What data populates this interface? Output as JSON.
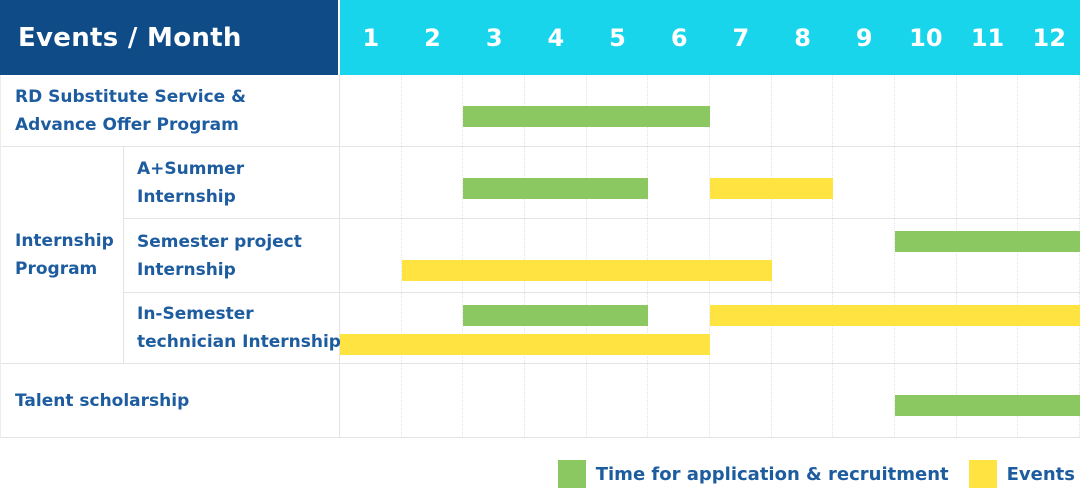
{
  "header": {
    "title": "Events / Month"
  },
  "colors": {
    "header_bg": "#0e4b87",
    "months_bg": "#18d5ec",
    "label_text": "#1d5c9f",
    "application_bar": "#8cc862",
    "events_bar": "#ffe340"
  },
  "chart_data": {
    "type": "bar",
    "subtype": "gantt-schedule",
    "title": "Events / Month",
    "x_axis_label": "Month",
    "months": [
      "1",
      "2",
      "3",
      "4",
      "5",
      "6",
      "7",
      "8",
      "9",
      "10",
      "11",
      "12"
    ],
    "x_range": [
      1,
      12
    ],
    "grid": true,
    "legend_position": "bottom-right",
    "legend": [
      {
        "key": "application",
        "label": "Time for application & recruitment",
        "color": "#8cc862"
      },
      {
        "key": "events",
        "label": "Events",
        "color": "#ffe340"
      }
    ],
    "sections": [
      {
        "kind": "plain",
        "rows": [
          {
            "id": "rd-substitute-service",
            "label": "RD Substitute Service & Advance Offer Program",
            "label_lines": [
              "RD Substitute Service &",
              "Advance Offer Program"
            ],
            "bars": [
              {
                "type": "application",
                "start_month": 3,
                "end_month": 6,
                "lane": "single"
              }
            ]
          }
        ]
      },
      {
        "kind": "group",
        "label": "Internship Program",
        "label_lines": [
          "Internship",
          "Program"
        ],
        "rows": [
          {
            "id": "a-plus-summer-internship",
            "label": "A+Summer Internship",
            "label_lines": [
              "A+Summer",
              "Internship"
            ],
            "bars": [
              {
                "type": "application",
                "start_month": 3,
                "end_month": 5,
                "lane": "single"
              },
              {
                "type": "events",
                "start_month": 7,
                "end_month": 8,
                "lane": "single"
              }
            ]
          },
          {
            "id": "semester-project-internship",
            "label": "Semester project Internship",
            "label_lines": [
              "Semester project",
              "Internship"
            ],
            "bars": [
              {
                "type": "application",
                "start_month": 10,
                "end_month": 12,
                "lane": "top"
              },
              {
                "type": "events",
                "start_month": 2,
                "end_month": 7,
                "lane": "bottom"
              }
            ]
          },
          {
            "id": "in-semester-technician-internship",
            "label": "In-Semester technician Internship",
            "label_lines": [
              "In-Semester",
              "technician Internship"
            ],
            "bars": [
              {
                "type": "application",
                "start_month": 3,
                "end_month": 5,
                "lane": "top"
              },
              {
                "type": "events",
                "start_month": 7,
                "end_month": 12,
                "lane": "top"
              },
              {
                "type": "events",
                "start_month": 1,
                "end_month": 6,
                "lane": "bottom"
              }
            ]
          }
        ]
      },
      {
        "kind": "plain",
        "rows": [
          {
            "id": "talent-scholarship",
            "label": "Talent scholarship",
            "label_lines": [
              "Talent scholarship"
            ],
            "bars": [
              {
                "type": "application",
                "start_month": 10,
                "end_month": 12,
                "lane": "single"
              }
            ]
          }
        ]
      }
    ]
  }
}
